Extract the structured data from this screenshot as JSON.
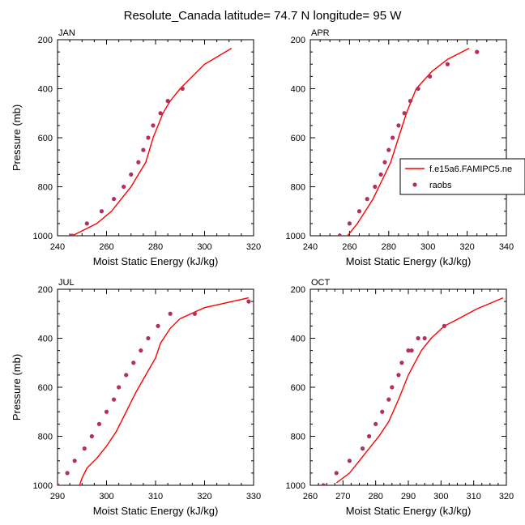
{
  "figure": {
    "title": "Resolute_Canada  latitude= 74.7 N longitude= 95 W"
  },
  "legend": {
    "model_label": "f.e15a6.FAMIPC5.ne",
    "obs_label": "raobs"
  },
  "colors": {
    "model_line": "#ff0000",
    "obs_marker": "#b03060",
    "axis": "#000000",
    "background": "#ffffff"
  },
  "chart_data": [
    {
      "type": "line",
      "panel": "JAN",
      "title": "JAN",
      "xlabel": "Moist Static Energy (kJ/kg)",
      "ylabel": "Pressure (mb)",
      "xlim": [
        240,
        320
      ],
      "ylim": [
        1000,
        200
      ],
      "xticks": [
        240,
        260,
        280,
        300,
        320
      ],
      "yticks": [
        200,
        400,
        600,
        800,
        1000
      ],
      "series": [
        {
          "name": "f.e15a6.FAMIPC5.ne",
          "style": "line",
          "x": [
            246,
            256,
            262,
            266,
            270,
            273,
            276,
            279,
            283,
            286,
            290,
            295,
            300,
            311
          ],
          "y": [
            1000,
            950,
            900,
            850,
            800,
            750,
            700,
            600,
            500,
            450,
            400,
            350,
            300,
            235
          ]
        },
        {
          "name": "raobs",
          "style": "marker",
          "x": [
            246,
            252,
            258,
            263,
            267,
            270,
            273,
            275,
            277,
            279,
            282,
            285,
            291
          ],
          "y": [
            1000,
            950,
            900,
            850,
            800,
            750,
            700,
            650,
            600,
            550,
            500,
            450,
            400
          ]
        }
      ]
    },
    {
      "type": "line",
      "panel": "APR",
      "title": "APR",
      "xlabel": "Moist Static Energy (kJ/kg)",
      "ylabel": "",
      "xlim": [
        240,
        340
      ],
      "ylim": [
        1000,
        200
      ],
      "xticks": [
        240,
        260,
        280,
        300,
        320,
        340
      ],
      "yticks": [
        200,
        400,
        600,
        800,
        1000
      ],
      "show_legend": true,
      "legend_location": "right",
      "series": [
        {
          "name": "f.e15a6.FAMIPC5.ne",
          "style": "line",
          "x": [
            259,
            264,
            268,
            272,
            275,
            278,
            281,
            283,
            285,
            289,
            294,
            302,
            310,
            321
          ],
          "y": [
            1000,
            950,
            900,
            850,
            800,
            750,
            700,
            650,
            600,
            500,
            400,
            330,
            280,
            235
          ]
        },
        {
          "name": "raobs",
          "style": "marker",
          "x": [
            255,
            260,
            265,
            269,
            273,
            276,
            278,
            280,
            282,
            285,
            288,
            291,
            295,
            301,
            310,
            325
          ],
          "y": [
            1000,
            950,
            900,
            850,
            800,
            750,
            700,
            650,
            600,
            550,
            500,
            450,
            400,
            350,
            300,
            250
          ]
        }
      ]
    },
    {
      "type": "line",
      "panel": "JUL",
      "title": "JUL",
      "xlabel": "Moist Static Energy (kJ/kg)",
      "ylabel": "Pressure (mb)",
      "xlim": [
        290,
        330
      ],
      "ylim": [
        1000,
        200
      ],
      "xticks": [
        290,
        300,
        310,
        320,
        330
      ],
      "yticks": [
        200,
        400,
        600,
        800,
        1000
      ],
      "series": [
        {
          "name": "f.e15a6.FAMIPC5.ne",
          "style": "line",
          "x": [
            294.5,
            295,
            296,
            298,
            300,
            302,
            304,
            306,
            308,
            310,
            311,
            313,
            315,
            320,
            329
          ],
          "y": [
            1000,
            970,
            930,
            890,
            840,
            780,
            700,
            620,
            550,
            480,
            420,
            360,
            320,
            275,
            235
          ]
        },
        {
          "name": "raobs",
          "style": "marker",
          "x": [
            290,
            292,
            293.5,
            295.5,
            297,
            298.5,
            300,
            301.5,
            302.5,
            304,
            305.5,
            307,
            308.5,
            310.5,
            313,
            318,
            329
          ],
          "y": [
            1000,
            950,
            900,
            850,
            800,
            750,
            700,
            650,
            600,
            550,
            500,
            450,
            400,
            350,
            300,
            300,
            250
          ]
        }
      ]
    },
    {
      "type": "line",
      "panel": "OCT",
      "title": "OCT",
      "xlabel": "Moist Static Energy (kJ/kg)",
      "ylabel": "",
      "xlim": [
        260,
        320
      ],
      "ylim": [
        1000,
        200
      ],
      "xticks": [
        260,
        270,
        280,
        290,
        300,
        310,
        320
      ],
      "yticks": [
        200,
        400,
        600,
        800,
        1000
      ],
      "series": [
        {
          "name": "f.e15a6.FAMIPC5.ne",
          "style": "line",
          "x": [
            268,
            272,
            275,
            278,
            281,
            284,
            287,
            290,
            294,
            297,
            301,
            304,
            311,
            319
          ],
          "y": [
            990,
            950,
            900,
            850,
            800,
            740,
            650,
            550,
            450,
            400,
            350,
            330,
            280,
            235
          ]
        },
        {
          "name": "raobs",
          "style": "marker",
          "x": [
            264,
            268,
            272,
            276,
            278,
            280,
            282,
            284,
            285,
            287,
            288,
            290,
            291,
            293,
            295,
            301
          ],
          "y": [
            1000,
            950,
            900,
            850,
            800,
            750,
            700,
            650,
            600,
            550,
            500,
            450,
            450,
            400,
            400,
            350
          ]
        }
      ]
    }
  ]
}
